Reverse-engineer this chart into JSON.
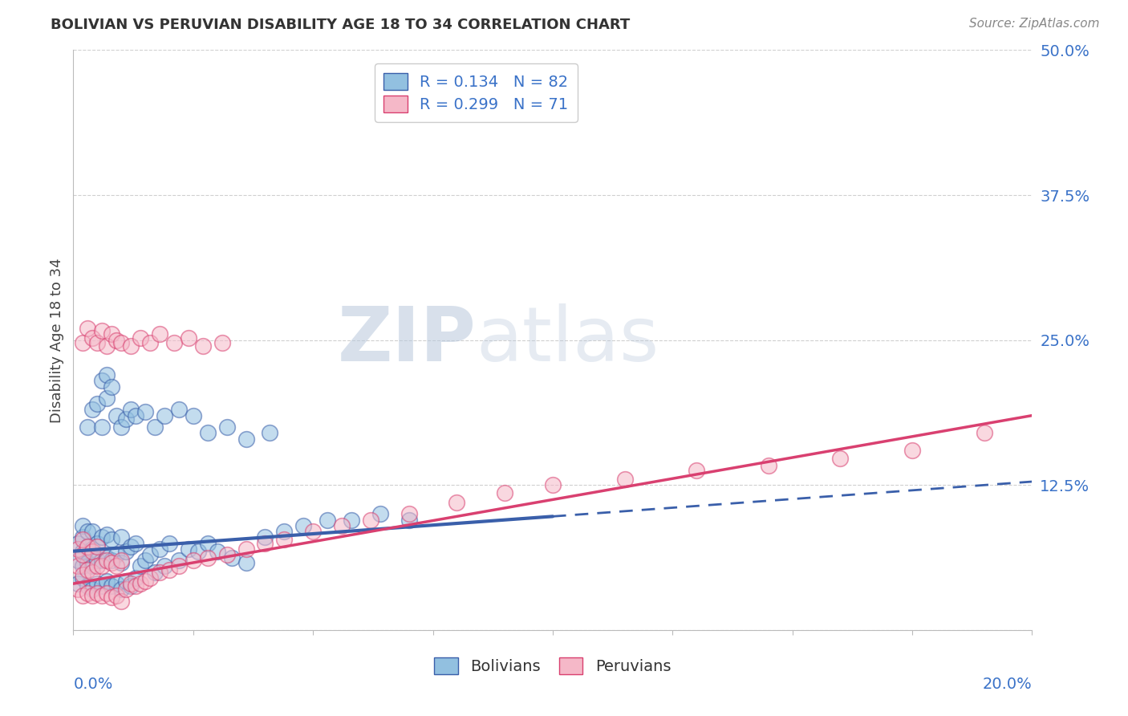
{
  "title": "BOLIVIAN VS PERUVIAN DISABILITY AGE 18 TO 34 CORRELATION CHART",
  "source": "Source: ZipAtlas.com",
  "ylabel": "Disability Age 18 to 34",
  "xlim": [
    0.0,
    0.2
  ],
  "ylim": [
    0.0,
    0.5
  ],
  "yticks": [
    0.0,
    0.125,
    0.25,
    0.375,
    0.5
  ],
  "ytick_labels": [
    "",
    "12.5%",
    "25.0%",
    "37.5%",
    "50.0%"
  ],
  "legend_bolivians": "Bolivians",
  "legend_peruvians": "Peruvians",
  "r_bolivian": 0.134,
  "n_bolivian": 82,
  "r_peruvian": 0.299,
  "n_peruvian": 71,
  "color_blue": "#92c0e0",
  "color_pink": "#f5b8c8",
  "color_blue_line": "#3a5faa",
  "color_pink_line": "#d94070",
  "color_blue_text": "#3a72c8",
  "watermark_color": "#cdd8ea",
  "background_color": "#ffffff",
  "grid_color": "#d0d0d0",
  "bolivians_x": [
    0.001,
    0.001,
    0.001,
    0.002,
    0.002,
    0.002,
    0.002,
    0.002,
    0.003,
    0.003,
    0.003,
    0.003,
    0.004,
    0.004,
    0.004,
    0.004,
    0.005,
    0.005,
    0.005,
    0.006,
    0.006,
    0.006,
    0.007,
    0.007,
    0.007,
    0.008,
    0.008,
    0.008,
    0.009,
    0.009,
    0.01,
    0.01,
    0.01,
    0.011,
    0.011,
    0.012,
    0.012,
    0.013,
    0.013,
    0.014,
    0.015,
    0.016,
    0.017,
    0.018,
    0.019,
    0.02,
    0.022,
    0.024,
    0.026,
    0.028,
    0.03,
    0.033,
    0.036,
    0.04,
    0.044,
    0.048,
    0.053,
    0.058,
    0.064,
    0.07,
    0.003,
    0.004,
    0.005,
    0.006,
    0.006,
    0.007,
    0.007,
    0.008,
    0.009,
    0.01,
    0.011,
    0.012,
    0.013,
    0.015,
    0.017,
    0.019,
    0.022,
    0.025,
    0.028,
    0.032,
    0.036,
    0.041
  ],
  "bolivians_y": [
    0.04,
    0.06,
    0.075,
    0.045,
    0.055,
    0.068,
    0.08,
    0.09,
    0.038,
    0.058,
    0.072,
    0.085,
    0.035,
    0.055,
    0.07,
    0.085,
    0.04,
    0.06,
    0.075,
    0.038,
    0.06,
    0.08,
    0.042,
    0.062,
    0.082,
    0.038,
    0.06,
    0.078,
    0.04,
    0.065,
    0.035,
    0.058,
    0.08,
    0.042,
    0.068,
    0.038,
    0.072,
    0.045,
    0.075,
    0.055,
    0.06,
    0.065,
    0.05,
    0.07,
    0.055,
    0.075,
    0.06,
    0.07,
    0.068,
    0.075,
    0.068,
    0.062,
    0.058,
    0.08,
    0.085,
    0.09,
    0.095,
    0.095,
    0.1,
    0.095,
    0.175,
    0.19,
    0.195,
    0.175,
    0.215,
    0.2,
    0.22,
    0.21,
    0.185,
    0.175,
    0.182,
    0.19,
    0.185,
    0.188,
    0.175,
    0.185,
    0.19,
    0.185,
    0.17,
    0.175,
    0.165,
    0.17
  ],
  "peruvians_x": [
    0.001,
    0.001,
    0.001,
    0.002,
    0.002,
    0.002,
    0.002,
    0.003,
    0.003,
    0.003,
    0.004,
    0.004,
    0.004,
    0.005,
    0.005,
    0.005,
    0.006,
    0.006,
    0.007,
    0.007,
    0.008,
    0.008,
    0.009,
    0.009,
    0.01,
    0.01,
    0.011,
    0.012,
    0.013,
    0.014,
    0.015,
    0.016,
    0.018,
    0.02,
    0.022,
    0.025,
    0.028,
    0.032,
    0.036,
    0.04,
    0.044,
    0.05,
    0.056,
    0.062,
    0.07,
    0.08,
    0.09,
    0.1,
    0.115,
    0.13,
    0.145,
    0.16,
    0.175,
    0.19,
    0.002,
    0.003,
    0.004,
    0.005,
    0.006,
    0.007,
    0.008,
    0.009,
    0.01,
    0.012,
    0.014,
    0.016,
    0.018,
    0.021,
    0.024,
    0.027,
    0.031
  ],
  "peruvians_y": [
    0.035,
    0.055,
    0.07,
    0.03,
    0.048,
    0.065,
    0.078,
    0.032,
    0.052,
    0.072,
    0.03,
    0.05,
    0.068,
    0.032,
    0.055,
    0.072,
    0.03,
    0.055,
    0.032,
    0.06,
    0.028,
    0.058,
    0.03,
    0.055,
    0.025,
    0.06,
    0.035,
    0.04,
    0.038,
    0.04,
    0.042,
    0.045,
    0.05,
    0.052,
    0.055,
    0.06,
    0.062,
    0.065,
    0.07,
    0.075,
    0.078,
    0.085,
    0.09,
    0.095,
    0.1,
    0.11,
    0.118,
    0.125,
    0.13,
    0.138,
    0.142,
    0.148,
    0.155,
    0.17,
    0.248,
    0.26,
    0.252,
    0.248,
    0.258,
    0.245,
    0.255,
    0.25,
    0.248,
    0.245,
    0.252,
    0.248,
    0.255,
    0.248,
    0.252,
    0.245,
    0.248
  ]
}
